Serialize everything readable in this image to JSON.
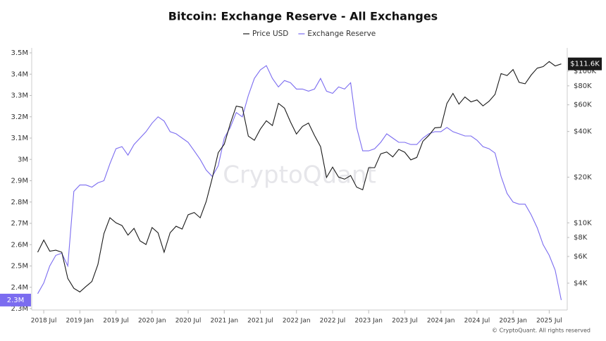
{
  "chart_data": {
    "type": "line",
    "title": "Bitcoin: Exchange Reserve - All Exchanges",
    "watermark": "CryptoQuant",
    "footer": "© CryptoQuant. All rights reserved",
    "x": [
      "2018-06",
      "2018-07",
      "2018-08",
      "2018-09",
      "2018-10",
      "2018-11",
      "2018-12",
      "2019-01",
      "2019-02",
      "2019-03",
      "2019-04",
      "2019-05",
      "2019-06",
      "2019-07",
      "2019-08",
      "2019-09",
      "2019-10",
      "2019-11",
      "2019-12",
      "2020-01",
      "2020-02",
      "2020-03",
      "2020-04",
      "2020-05",
      "2020-06",
      "2020-07",
      "2020-08",
      "2020-09",
      "2020-10",
      "2020-11",
      "2020-12",
      "2021-01",
      "2021-02",
      "2021-03",
      "2021-04",
      "2021-05",
      "2021-06",
      "2021-07",
      "2021-08",
      "2021-09",
      "2021-10",
      "2021-11",
      "2021-12",
      "2022-01",
      "2022-02",
      "2022-03",
      "2022-04",
      "2022-05",
      "2022-06",
      "2022-07",
      "2022-08",
      "2022-09",
      "2022-10",
      "2022-11",
      "2022-12",
      "2023-01",
      "2023-02",
      "2023-03",
      "2023-04",
      "2023-05",
      "2023-06",
      "2023-07",
      "2023-08",
      "2023-09",
      "2023-10",
      "2023-11",
      "2023-12",
      "2024-01",
      "2024-02",
      "2024-03",
      "2024-04",
      "2024-05",
      "2024-06",
      "2024-07",
      "2024-08",
      "2024-09",
      "2024-10",
      "2024-11",
      "2024-12",
      "2025-01",
      "2025-02",
      "2025-03",
      "2025-04",
      "2025-05",
      "2025-06",
      "2025-07",
      "2025-08",
      "2025-09"
    ],
    "series": [
      {
        "name": "Price USD",
        "color": "#1a1a1a",
        "axis": "y2",
        "last_label": "$111.6K",
        "values": [
          6400,
          7700,
          6500,
          6600,
          6400,
          4300,
          3700,
          3500,
          3800,
          4100,
          5300,
          8500,
          10800,
          10000,
          9600,
          8300,
          9200,
          7600,
          7200,
          9300,
          8600,
          6400,
          8600,
          9500,
          9100,
          11300,
          11700,
          10800,
          13800,
          19700,
          29000,
          33000,
          45000,
          58800,
          57700,
          37300,
          35000,
          41500,
          47100,
          43800,
          61300,
          57000,
          46300,
          38500,
          43200,
          45500,
          37700,
          31800,
          19900,
          23300,
          20000,
          19400,
          20500,
          17200,
          16500,
          23100,
          23100,
          28500,
          29300,
          27200,
          30500,
          29200,
          26000,
          27000,
          34500,
          37700,
          42300,
          42600,
          61200,
          71300,
          60600,
          67500,
          62700,
          64600,
          59000,
          63300,
          70200,
          96400,
          93400,
          102400,
          84300,
          82500,
          94200,
          104600,
          107100,
          115700,
          108200,
          111600
        ]
      },
      {
        "name": "Exchange Reserve",
        "color": "#7b6cf0",
        "axis": "y",
        "last_label": "2.3M",
        "values": [
          2370000,
          2420000,
          2500000,
          2550000,
          2560000,
          2500000,
          2850000,
          2880000,
          2880000,
          2870000,
          2890000,
          2900000,
          2980000,
          3050000,
          3060000,
          3020000,
          3070000,
          3100000,
          3130000,
          3170000,
          3200000,
          3180000,
          3130000,
          3120000,
          3100000,
          3080000,
          3040000,
          3000000,
          2950000,
          2920000,
          2970000,
          3100000,
          3150000,
          3220000,
          3200000,
          3300000,
          3380000,
          3420000,
          3440000,
          3380000,
          3340000,
          3370000,
          3360000,
          3330000,
          3330000,
          3320000,
          3330000,
          3380000,
          3320000,
          3310000,
          3340000,
          3330000,
          3360000,
          3150000,
          3040000,
          3040000,
          3050000,
          3080000,
          3120000,
          3100000,
          3080000,
          3080000,
          3070000,
          3070000,
          3100000,
          3120000,
          3130000,
          3130000,
          3150000,
          3130000,
          3120000,
          3110000,
          3110000,
          3090000,
          3060000,
          3050000,
          3030000,
          2920000,
          2840000,
          2800000,
          2790000,
          2790000,
          2740000,
          2680000,
          2600000,
          2550000,
          2480000,
          2340000
        ]
      }
    ],
    "xlim": [
      "2018-05",
      "2025-10"
    ],
    "xticks": [
      {
        "value": "2018-07",
        "label": "2018 Jul"
      },
      {
        "value": "2019-01",
        "label": "2019 Jan"
      },
      {
        "value": "2019-07",
        "label": "2019 Jul"
      },
      {
        "value": "2020-01",
        "label": "2020 Jan"
      },
      {
        "value": "2020-07",
        "label": "2020 Jul"
      },
      {
        "value": "2021-01",
        "label": "2021 Jan"
      },
      {
        "value": "2021-07",
        "label": "2021 Jul"
      },
      {
        "value": "2022-01",
        "label": "2022 Jan"
      },
      {
        "value": "2022-07",
        "label": "2022 Jul"
      },
      {
        "value": "2023-01",
        "label": "2023 Jan"
      },
      {
        "value": "2023-07",
        "label": "2023 Jul"
      },
      {
        "value": "2024-01",
        "label": "2024 Jan"
      },
      {
        "value": "2024-07",
        "label": "2024 Jul"
      },
      {
        "value": "2025-01",
        "label": "2025 Jan"
      },
      {
        "value": "2025-07",
        "label": "2025 Jul"
      }
    ],
    "ylim": [
      2300000,
      3500000
    ],
    "yticks": [
      {
        "value": 2300000,
        "label": "2.3M"
      },
      {
        "value": 2400000,
        "label": "2.4M"
      },
      {
        "value": 2500000,
        "label": "2.5M"
      },
      {
        "value": 2600000,
        "label": "2.6M"
      },
      {
        "value": 2700000,
        "label": "2.7M"
      },
      {
        "value": 2800000,
        "label": "2.8M"
      },
      {
        "value": 2900000,
        "label": "2.9M"
      },
      {
        "value": 3000000,
        "label": "3M"
      },
      {
        "value": 3100000,
        "label": "3.1M"
      },
      {
        "value": 3200000,
        "label": "3.2M"
      },
      {
        "value": 3300000,
        "label": "3.3M"
      },
      {
        "value": 3400000,
        "label": "3.4M"
      },
      {
        "value": 3500000,
        "label": "3.5M"
      }
    ],
    "y2lim": [
      2720,
      132000
    ],
    "y2scale": "log",
    "y2ticks": [
      {
        "value": 4000,
        "label": "$4K"
      },
      {
        "value": 6000,
        "label": "$6K"
      },
      {
        "value": 8000,
        "label": "$8K"
      },
      {
        "value": 10000,
        "label": "$10K"
      },
      {
        "value": 20000,
        "label": "$20K"
      },
      {
        "value": 40000,
        "label": "$40K"
      },
      {
        "value": 60000,
        "label": "$60K"
      },
      {
        "value": 80000,
        "label": "$80K"
      },
      {
        "value": 100000,
        "label": "$100K"
      }
    ],
    "grid": false
  }
}
